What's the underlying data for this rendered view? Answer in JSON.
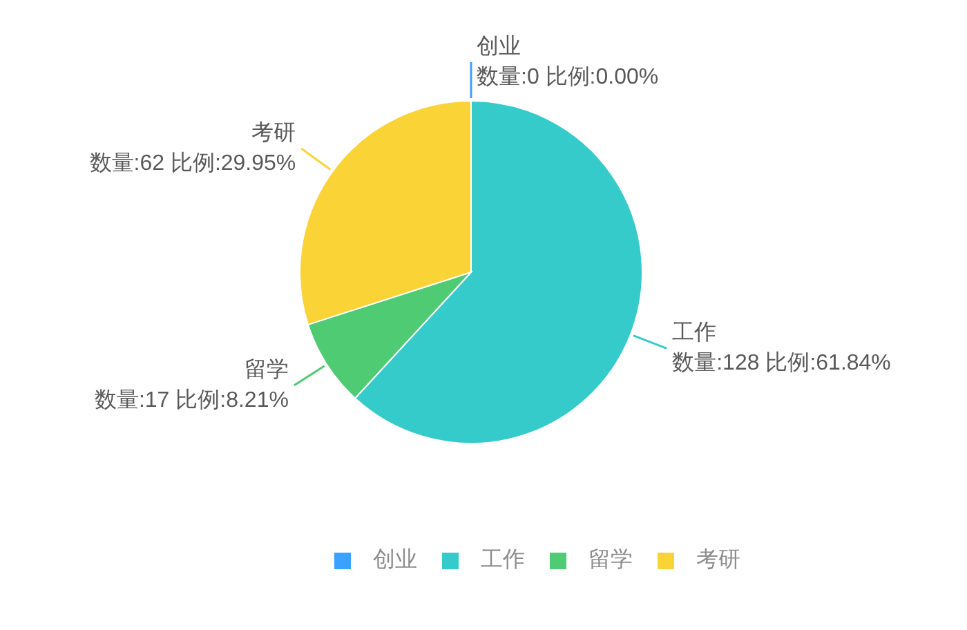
{
  "chart_data": {
    "type": "pie",
    "categories": [
      "创业",
      "工作",
      "留学",
      "考研"
    ],
    "values": [
      0,
      128,
      17,
      62
    ],
    "colors": [
      "#3ba1ff",
      "#36cbcb",
      "#4ecb73",
      "#fad337"
    ],
    "value_labels": [
      "数量:0 比例:0.00%",
      "数量:128 比例:61.84%",
      "数量:17 比例:8.21%",
      "数量:62 比例:29.95%"
    ],
    "legend": "bottom"
  }
}
